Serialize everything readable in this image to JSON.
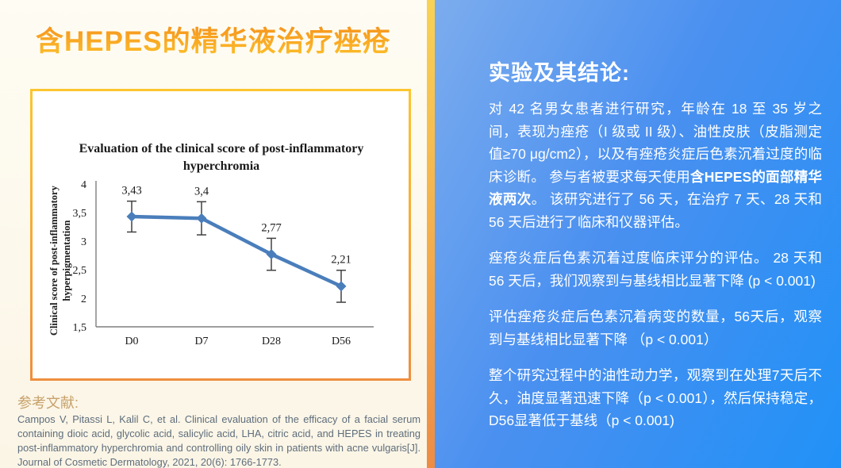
{
  "slide": {
    "title": "含HEPES的精华液治疗痤疮"
  },
  "chart_data": {
    "type": "line",
    "title": "Evaluation of the clinical score of post-inflammatory hyperchromia",
    "ylabel": "Clinical score of post-inflammatory hyperpigmentation",
    "xlabel": "",
    "categories": [
      "D0",
      "D7",
      "D28",
      "D56"
    ],
    "values": [
      3.43,
      3.4,
      2.77,
      2.21
    ],
    "value_labels": [
      "3,43",
      "3,4",
      "2,77",
      "2,21"
    ],
    "error_bars": [
      0.27,
      0.29,
      0.28,
      0.28
    ],
    "ylim": [
      1.5,
      4
    ],
    "ytick_step": 0.5,
    "ytick_labels": [
      "4",
      "3,5",
      "3",
      "2,5",
      "2",
      "1,5"
    ],
    "grid": false,
    "legend": null,
    "line_color": "#4A7EBB"
  },
  "reference": {
    "label": "参考文献:",
    "citation": "Campos V, Pitassi L, Kalil C, et al. Clinical evaluation of the efficacy of a facial serum containing dioic acid, glycolic acid, salicylic acid, LHA, citric acid, and HEPES in treating post-inflammatory hyperchromia and controlling oily skin in patients with acne vulgaris[J]. Journal of Cosmetic Dermatology, 2021, 20(6): 1766-1773."
  },
  "conclusions": {
    "heading": "实验及其结论:",
    "p1_pre": "对 42 名男女患者进行研究，年龄在 18 至 35 岁之间，表现为痤疮（I 级或 II 级）、油性皮肤（皮脂测定值≥70 μg/cm2），以及有痤疮炎症后色素沉着过度的临床诊断。 参与者被要求每天使用",
    "p1_bold": "含HEPES的面部精华液两次",
    "p1_post": "。 该研究进行了 56 天，在治疗 7 天、28 天和 56 天后进行了临床和仪器评估。",
    "p2": "痤疮炎症后色素沉着过度临床评分的评估。 28 天和 56 天后，我们观察到与基线相比显著下降 (p < 0.001)",
    "p3": "评估痤疮炎症后色素沉着病变的数量，56天后，观察到与基线相比显著下降 （p < 0.001）",
    "p4": "整个研究过程中的油性动力学，观察到在处理7天后不久，油度显著迅速下降（p < 0.001），然后保持稳定，D56显著低于基线（p < 0.001)"
  },
  "colors": {
    "title_accent_top": "#F5911C",
    "title_accent_bottom": "#FCBD2A",
    "left_background": "#FBF5E6",
    "chart_border_top": "#FCC52E",
    "chart_border_bottom": "#EE8F3E",
    "stripe_top": "#F9D254",
    "stripe_bottom": "#EE8C44",
    "panel_blue_light": "#7CACEE",
    "panel_blue_deep": "#2191F7",
    "reference_label": "#C8A26B",
    "citation_text": "#5E6D7C",
    "chart_line": "#4A7EBB"
  }
}
